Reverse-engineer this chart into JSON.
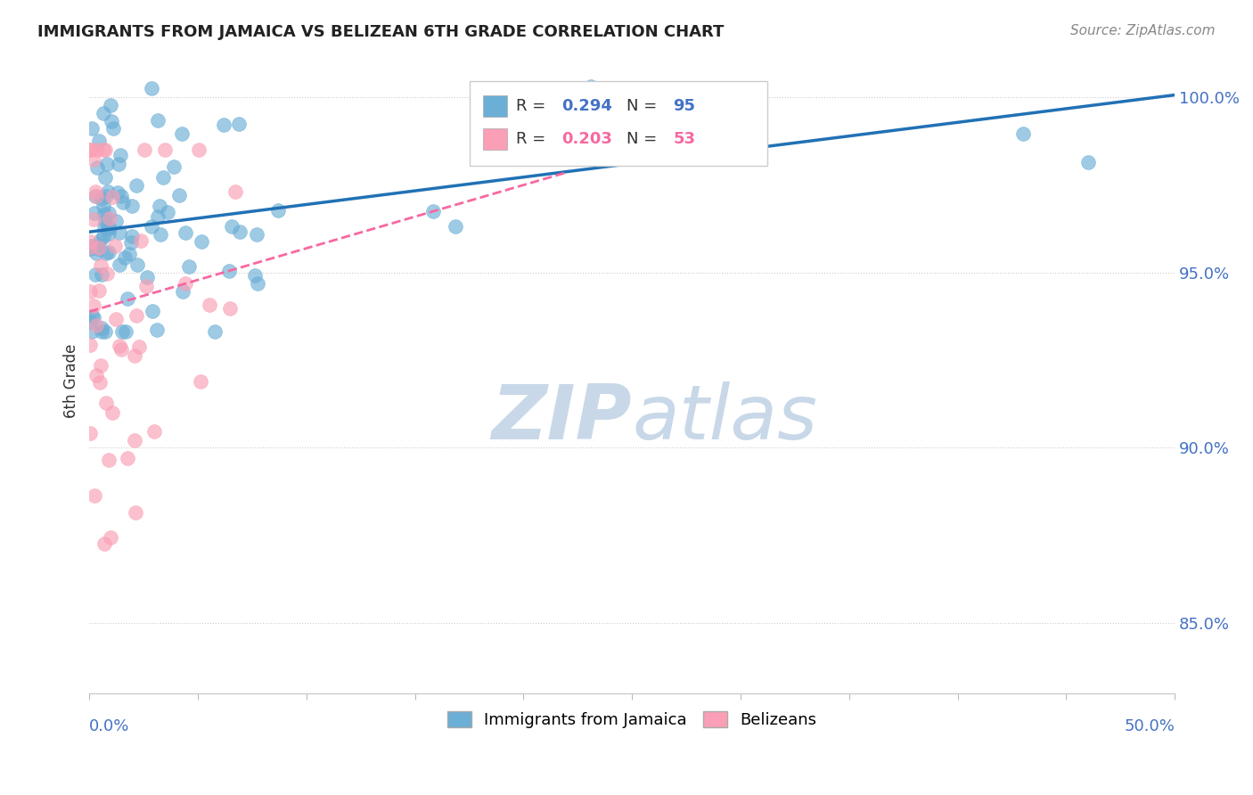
{
  "title": "IMMIGRANTS FROM JAMAICA VS BELIZEAN 6TH GRADE CORRELATION CHART",
  "source_text": "Source: ZipAtlas.com",
  "ylabel": "6th Grade",
  "x_min": 0.0,
  "x_max": 0.5,
  "y_min": 0.83,
  "y_max": 1.008,
  "yticks": [
    0.85,
    0.9,
    0.95,
    1.0
  ],
  "ytick_labels": [
    "85.0%",
    "90.0%",
    "95.0%",
    "100.0%"
  ],
  "R_blue": 0.294,
  "N_blue": 95,
  "R_pink": 0.203,
  "N_pink": 53,
  "blue_color": "#6baed6",
  "pink_color": "#fa9fb5",
  "blue_line_color": "#2171b5",
  "pink_line_color": "#f768a1",
  "legend_label_blue": "Immigrants from Jamaica",
  "legend_label_pink": "Belizeans",
  "watermark_zip": "ZIP",
  "watermark_atlas": "atlas",
  "watermark_color": "#c8d8e8"
}
